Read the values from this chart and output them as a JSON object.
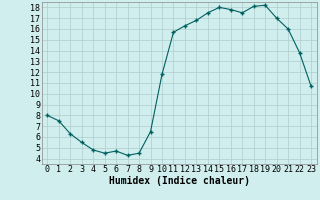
{
  "x": [
    0,
    1,
    2,
    3,
    4,
    5,
    6,
    7,
    8,
    9,
    10,
    11,
    12,
    13,
    14,
    15,
    16,
    17,
    18,
    19,
    20,
    21,
    22,
    23
  ],
  "y": [
    8.0,
    7.5,
    6.3,
    5.5,
    4.8,
    4.5,
    4.7,
    4.3,
    4.5,
    6.5,
    11.8,
    15.7,
    16.3,
    16.8,
    17.5,
    18.0,
    17.8,
    17.5,
    18.1,
    18.2,
    17.0,
    16.0,
    13.8,
    10.7
  ],
  "title": "",
  "xlabel": "Humidex (Indice chaleur)",
  "xlim": [
    -0.5,
    23.5
  ],
  "ylim": [
    3.5,
    18.5
  ],
  "yticks": [
    4,
    5,
    6,
    7,
    8,
    9,
    10,
    11,
    12,
    13,
    14,
    15,
    16,
    17,
    18
  ],
  "xticks": [
    0,
    1,
    2,
    3,
    4,
    5,
    6,
    7,
    8,
    9,
    10,
    11,
    12,
    13,
    14,
    15,
    16,
    17,
    18,
    19,
    20,
    21,
    22,
    23
  ],
  "line_color": "#006060",
  "marker_color": "#006060",
  "bg_color": "#d0eeee",
  "grid_color": "#b0cccc",
  "axis_label_fontsize": 7,
  "tick_fontsize": 6
}
